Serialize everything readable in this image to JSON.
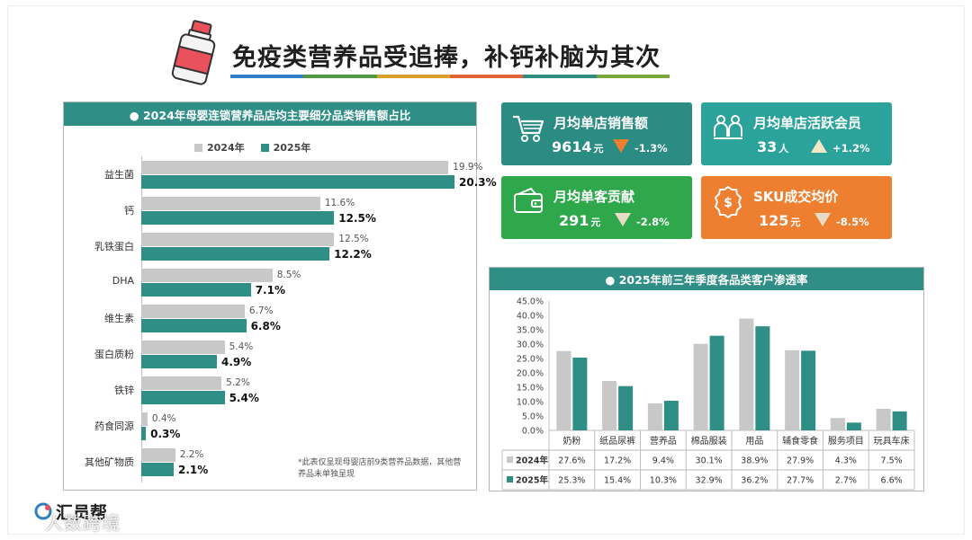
{
  "header": {
    "title": "免疫类营养品受追捧，补钙补脑为其次",
    "stripe_colors": [
      "#2e7fc4",
      "#4d9a41",
      "#d9a02b",
      "#e0643a",
      "#2e8c80",
      "#7aa83a"
    ]
  },
  "colors": {
    "teal": "#2f8e85",
    "gray": "#c8c8c8",
    "card_teal": "#2b8c83",
    "card_green": "#2ea84a",
    "card_orange": "#ee7f31",
    "down_arrow": "#ee7f31",
    "down_arrow_light": "#e9dcc4",
    "up_arrow": "#f4e7c6"
  },
  "left_panel": {
    "title": "● 2024年母婴连锁营养品店均主要细分品类销售额占比",
    "legend": [
      "2024年",
      "2025年"
    ],
    "footnote": "*此表仅呈现母婴店前9类营养品数据，其他营养品未单独呈现"
  },
  "kpis": [
    {
      "label": "月均单店销售额",
      "value": "9614",
      "unit": "元",
      "change": "-1.3%",
      "direction": "down",
      "icon": "shopping-cart-icon"
    },
    {
      "label": "月均单店活跃会员",
      "value": "33",
      "unit": "人",
      "change": "+1.2%",
      "direction": "up",
      "icon": "members-icon"
    },
    {
      "label": "月均单客贡献",
      "value": "291",
      "unit": "元",
      "change": "-2.8%",
      "direction": "down",
      "icon": "wallet-icon"
    },
    {
      "label": "SKU成交均价",
      "value": "125",
      "unit": "元",
      "change": "-8.5%",
      "direction": "down",
      "icon": "price-tag-icon"
    }
  ],
  "right_panel": {
    "title": "● 2025年前三年季度各品类客户渗透率"
  },
  "logo": {
    "text": "汇员帮"
  },
  "watermark": {
    "text": "人数跨境"
  },
  "chart_data": [
    {
      "type": "bar",
      "orientation": "horizontal",
      "title": "● 2024年母婴连锁营养品店均主要细分品类销售额占比",
      "categories": [
        "益生菌",
        "钙",
        "乳铁蛋白",
        "DHA",
        "维生素",
        "蛋白质粉",
        "铁锌",
        "药食同源",
        "其他矿物质"
      ],
      "series": [
        {
          "name": "2024年",
          "values": [
            19.9,
            11.6,
            12.5,
            8.5,
            6.7,
            5.4,
            5.2,
            0.4,
            2.2
          ],
          "labels": [
            "19.9%",
            "11.6%",
            "12.5%",
            "8.5%",
            "6.7%",
            "5.4%",
            "5.2%",
            "0.4%",
            "2.2%"
          ]
        },
        {
          "name": "2025年",
          "values": [
            20.3,
            12.5,
            12.2,
            7.1,
            6.8,
            4.9,
            5.4,
            0.3,
            2.1
          ],
          "labels": [
            "20.3%",
            "12.5%",
            "12.2%",
            "7.1%",
            "6.8%",
            "4.9%",
            "5.4%",
            "0.3%",
            "2.1%"
          ]
        }
      ],
      "xlim": [
        0,
        21
      ],
      "legend": "top"
    },
    {
      "type": "bar",
      "title": "● 2025年前三年季度各品类客户渗透率",
      "categories": [
        "奶粉",
        "纸品尿裤",
        "营养品",
        "棉品服装",
        "用品",
        "辅食零食",
        "服务项目",
        "玩具车床"
      ],
      "series": [
        {
          "name": "2024年",
          "values": [
            27.6,
            17.2,
            9.4,
            30.1,
            38.9,
            27.9,
            4.3,
            7.5
          ],
          "labels": [
            "27.6%",
            "17.2%",
            "9.4%",
            "30.1%",
            "38.9%",
            "27.9%",
            "4.3%",
            "7.5%"
          ]
        },
        {
          "name": "2025年",
          "values": [
            25.3,
            15.4,
            10.3,
            32.9,
            36.2,
            27.7,
            2.7,
            6.6
          ],
          "labels": [
            "25.3%",
            "15.4%",
            "10.3%",
            "32.9%",
            "36.2%",
            "27.7%",
            "2.7%",
            "6.6%"
          ]
        }
      ],
      "ylim": [
        0,
        45
      ],
      "yticks": [
        "0.0%",
        "5.0%",
        "10.0%",
        "15.0%",
        "20.0%",
        "25.0%",
        "30.0%",
        "35.0%",
        "40.0%",
        "45.0%"
      ],
      "grid": false,
      "legend": "data-table"
    }
  ]
}
